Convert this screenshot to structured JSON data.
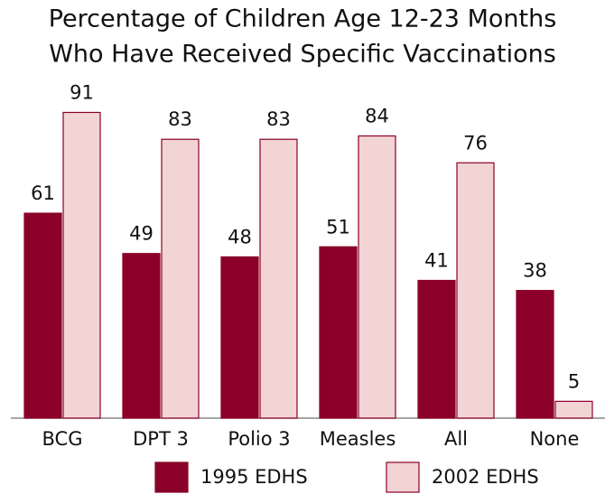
{
  "chart_data": {
    "type": "bar",
    "title": [
      "Percentage of Children Age 12-23 Months",
      "Who Have Received Specific Vaccinations"
    ],
    "categories": [
      "BCG",
      "DPT 3",
      "Polio 3",
      "Measles",
      "All",
      "None"
    ],
    "series": [
      {
        "name": "1995 EDHS",
        "color": "#8b0028",
        "values": [
          61,
          49,
          48,
          51,
          41,
          38
        ]
      },
      {
        "name": "2002 EDHS",
        "color": "#f2d4d4",
        "values": [
          91,
          83,
          83,
          84,
          76,
          5
        ]
      }
    ],
    "ylim": [
      0,
      100
    ]
  }
}
